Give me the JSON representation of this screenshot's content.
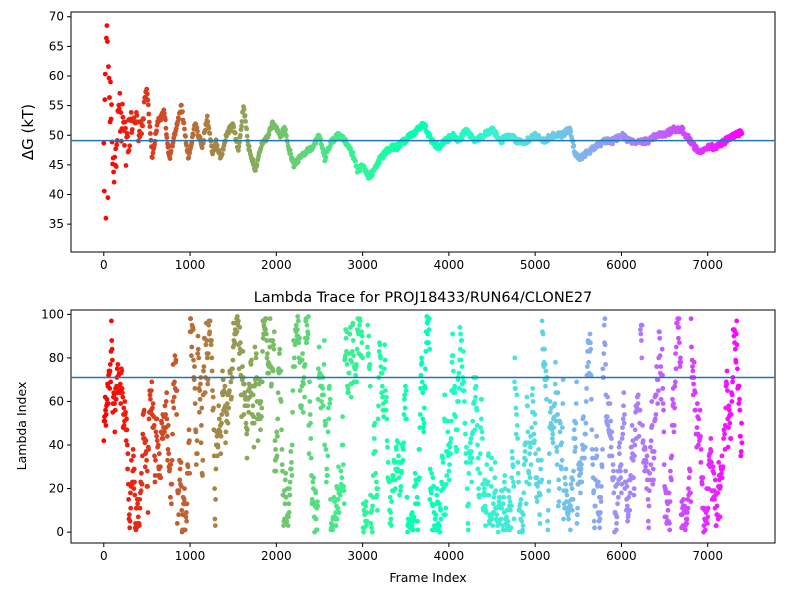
{
  "chart_data": [
    {
      "type": "scatter",
      "title": "",
      "xlabel": "",
      "ylabel": "ΔG (kT)",
      "xlim": [
        -380,
        7780
      ],
      "ylim": [
        30.3,
        70.8
      ],
      "xticks": [
        0,
        1000,
        2000,
        3000,
        4000,
        5000,
        6000,
        7000
      ],
      "yticks": [
        35,
        40,
        45,
        50,
        55,
        60,
        65,
        70
      ],
      "hline": 49.1,
      "n_frames": 7400,
      "color_scale": "rainbow, red at frame 0 to violet at last frame",
      "trace_anchors": {
        "frames": [
          0,
          60,
          120,
          180,
          260,
          340,
          420,
          500,
          560,
          620,
          700,
          760,
          820,
          900,
          980,
          1060,
          1140,
          1200,
          1260,
          1300,
          1360,
          1420,
          1500,
          1560,
          1620,
          1680,
          1760,
          1820,
          1900,
          1960,
          2040,
          2100,
          2160,
          2200,
          2260,
          2320,
          2420,
          2500,
          2560,
          2640,
          2720,
          2800,
          2880,
          2940,
          3000,
          3060,
          3140,
          3200,
          3260,
          3340,
          3400,
          3480,
          3560,
          3640,
          3700,
          3740,
          3800,
          3880,
          3960,
          4040,
          4120,
          4200,
          4300,
          4400,
          4500,
          4600,
          4700,
          4800,
          4900,
          5000,
          5100,
          5200,
          5300,
          5400,
          5460,
          5520,
          5600,
          5700,
          5800,
          5900,
          6000,
          6100,
          6200,
          6300,
          6400,
          6500,
          6600,
          6700,
          6800,
          6850,
          6900,
          7000,
          7100,
          7200,
          7300,
          7400
        ],
        "values": [
          50,
          58,
          45,
          55,
          48,
          54,
          50,
          58,
          46,
          52,
          54,
          46,
          50,
          55,
          46,
          52,
          48,
          53,
          47,
          49,
          46,
          50,
          52,
          47,
          55,
          48,
          44,
          48,
          50,
          52,
          50,
          51,
          47,
          45,
          46,
          47,
          48,
          50,
          46,
          49,
          50,
          49,
          47,
          44,
          45,
          43,
          44,
          46,
          47,
          48,
          48,
          49,
          50,
          51,
          52,
          51,
          49,
          48,
          49,
          50,
          49,
          51,
          49,
          50,
          51,
          49,
          50,
          49,
          49,
          50,
          49,
          50,
          50,
          51,
          47,
          46,
          47,
          48,
          49,
          49,
          50,
          49,
          49,
          49,
          50,
          50,
          51,
          51,
          49,
          48,
          47,
          48,
          48,
          49,
          50,
          50.5
        ]
      }
    },
    {
      "type": "scatter",
      "title": "Lambda Trace for PROJ18433/RUN64/CLONE27",
      "xlabel": "Frame Index",
      "ylabel": "Lambda Index",
      "xlim": [
        -380,
        7780
      ],
      "ylim": [
        -5,
        102
      ],
      "xticks": [
        0,
        1000,
        2000,
        3000,
        4000,
        5000,
        6000,
        7000
      ],
      "yticks": [
        0,
        20,
        40,
        60,
        80,
        100
      ],
      "hline": 71,
      "n_frames": 7400,
      "value_range": [
        0,
        99
      ],
      "color_scale": "rainbow, red at frame 0 to violet at last frame"
    }
  ]
}
